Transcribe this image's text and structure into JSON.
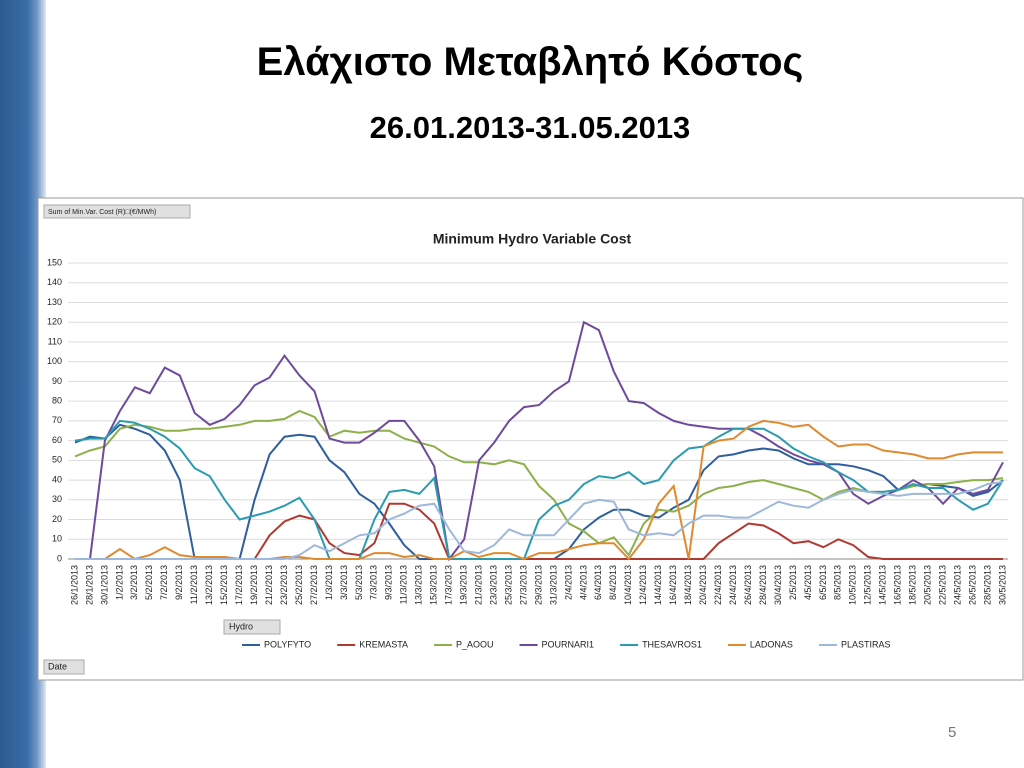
{
  "slide": {
    "title": "Ελάχιστο Μεταβλητό Κόστος",
    "subtitle": "26.01.2013-31.05.2013",
    "page_number": "5"
  },
  "chart_data": {
    "type": "line",
    "title": "Minimum Hydro Variable Cost",
    "pivot_buttons": {
      "values": "Sum of Min.Var. Cost (R)□(€/MWh)",
      "legend": "Hydro",
      "axis": "Date"
    },
    "categories": [
      "26/1/2013",
      "28/1/2013",
      "30/1/2013",
      "1/2/2013",
      "3/2/2013",
      "5/2/2013",
      "7/2/2013",
      "9/2/2013",
      "11/2/2013",
      "13/2/2013",
      "15/2/2013",
      "17/2/2013",
      "19/2/2013",
      "21/2/2013",
      "23/2/2013",
      "25/2/2013",
      "27/2/2013",
      "1/3/2013",
      "3/3/2013",
      "5/3/2013",
      "7/3/2013",
      "9/3/2013",
      "11/3/2013",
      "13/3/2013",
      "15/3/2013",
      "17/3/2013",
      "19/3/2013",
      "21/3/2013",
      "23/3/2013",
      "25/3/2013",
      "27/3/2013",
      "29/3/2013",
      "31/3/2013",
      "2/4/2013",
      "4/4/2013",
      "6/4/2013",
      "8/4/2013",
      "10/4/2013",
      "12/4/2013",
      "14/4/2013",
      "16/4/2013",
      "18/4/2013",
      "20/4/2013",
      "22/4/2013",
      "24/4/2013",
      "26/4/2013",
      "28/4/2013",
      "30/4/2013",
      "2/5/2013",
      "4/5/2013",
      "6/5/2013",
      "8/5/2013",
      "10/5/2013",
      "12/5/2013",
      "14/5/2013",
      "16/5/2013",
      "18/5/2013",
      "20/5/2013",
      "22/5/2013",
      "24/5/2013",
      "26/5/2013",
      "28/5/2013",
      "30/5/2013"
    ],
    "series": [
      {
        "name": "POLYFYTO",
        "color": "#2e5e9e",
        "values": [
          59,
          62,
          61,
          68,
          66,
          63,
          55,
          40,
          0,
          0,
          0,
          0,
          30,
          53,
          62,
          63,
          62,
          50,
          44,
          33,
          28,
          18,
          7,
          0,
          0,
          0,
          0,
          0,
          0,
          0,
          0,
          0,
          0,
          5,
          15,
          21,
          25,
          25,
          22,
          21,
          26,
          30,
          45,
          52,
          53,
          55,
          56,
          55,
          51,
          48,
          48,
          48,
          47,
          45,
          42,
          35,
          37,
          38,
          37,
          36,
          32,
          34,
          40
        ]
      },
      {
        "name": "KREMASTA",
        "color": "#b03a32",
        "values": [
          0,
          0,
          0,
          0,
          0,
          0,
          0,
          0,
          0,
          0,
          0,
          0,
          0,
          12,
          19,
          22,
          20,
          8,
          3,
          2,
          8,
          28,
          28,
          25,
          18,
          0,
          0,
          0,
          0,
          0,
          0,
          0,
          0,
          0,
          0,
          0,
          0,
          0,
          0,
          0,
          0,
          0,
          0,
          8,
          13,
          18,
          17,
          13,
          8,
          9,
          6,
          10,
          7,
          1,
          0,
          0,
          0,
          0,
          0,
          0,
          0,
          0,
          0
        ]
      },
      {
        "name": "P_AOOU",
        "color": "#8db04a",
        "values": [
          52,
          55,
          57,
          66,
          68,
          67,
          65,
          65,
          66,
          66,
          67,
          68,
          70,
          70,
          71,
          75,
          72,
          62,
          65,
          64,
          65,
          65,
          61,
          59,
          57,
          52,
          49,
          49,
          48,
          50,
          48,
          37,
          30,
          18,
          14,
          8,
          11,
          2,
          18,
          25,
          24,
          27,
          33,
          36,
          37,
          39,
          40,
          38,
          36,
          34,
          30,
          34,
          36,
          34,
          34,
          35,
          37,
          38,
          38,
          39,
          40,
          40,
          41
        ]
      },
      {
        "name": "POURNARI1",
        "color": "#6e4a9c",
        "values": [
          0,
          0,
          60,
          75,
          87,
          84,
          97,
          93,
          74,
          68,
          71,
          78,
          88,
          92,
          103,
          93,
          85,
          61,
          59,
          59,
          64,
          70,
          70,
          60,
          47,
          0,
          10,
          50,
          59,
          70,
          77,
          78,
          85,
          90,
          120,
          116,
          95,
          80,
          79,
          74,
          70,
          68,
          67,
          66,
          66,
          66,
          62,
          57,
          53,
          50,
          48,
          44,
          33,
          28,
          32,
          35,
          40,
          36,
          28,
          36,
          33,
          35,
          49
        ]
      },
      {
        "name": "THESAVROS1",
        "color": "#2a9cb0",
        "values": [
          60,
          61,
          61,
          70,
          69,
          66,
          62,
          56,
          46,
          42,
          30,
          20,
          22,
          24,
          27,
          31,
          20,
          0,
          0,
          0,
          20,
          34,
          35,
          33,
          41,
          0,
          0,
          0,
          0,
          0,
          0,
          20,
          27,
          30,
          38,
          42,
          41,
          44,
          38,
          40,
          50,
          56,
          57,
          62,
          66,
          66,
          66,
          62,
          56,
          52,
          49,
          44,
          40,
          34,
          34,
          35,
          38,
          36,
          36,
          30,
          25,
          28,
          40
        ]
      },
      {
        "name": "LADONAS",
        "color": "#e08a2f",
        "values": [
          0,
          0,
          0,
          5,
          0,
          2,
          6,
          2,
          1,
          1,
          1,
          0,
          0,
          0,
          1,
          1,
          0,
          0,
          0,
          0,
          3,
          3,
          1,
          2,
          0,
          0,
          4,
          1,
          3,
          3,
          0,
          3,
          3,
          5,
          7,
          8,
          8,
          0,
          10,
          28,
          37,
          0,
          57,
          60,
          61,
          67,
          70,
          69,
          67,
          68,
          62,
          57,
          58,
          58,
          55,
          54,
          53,
          51,
          51,
          53,
          54,
          54,
          54
        ]
      },
      {
        "name": "PLASTIRAS",
        "color": "#9db8dc",
        "values": [
          0,
          0,
          0,
          0,
          0,
          0,
          0,
          0,
          0,
          0,
          0,
          0,
          0,
          0,
          0,
          2,
          7,
          4,
          8,
          12,
          13,
          20,
          23,
          27,
          28,
          15,
          4,
          3,
          7,
          15,
          12,
          12,
          12,
          20,
          28,
          30,
          29,
          15,
          12,
          13,
          12,
          18,
          22,
          22,
          21,
          21,
          25,
          29,
          27,
          26,
          30,
          33,
          35,
          34,
          33,
          32,
          33,
          33,
          33,
          33,
          35,
          38,
          39
        ]
      }
    ],
    "ylim": [
      0,
      150
    ],
    "yticks": [
      0,
      10,
      20,
      30,
      40,
      50,
      60,
      70,
      80,
      90,
      100,
      110,
      120,
      130,
      140,
      150
    ],
    "grid": true,
    "legend": "bottom"
  }
}
